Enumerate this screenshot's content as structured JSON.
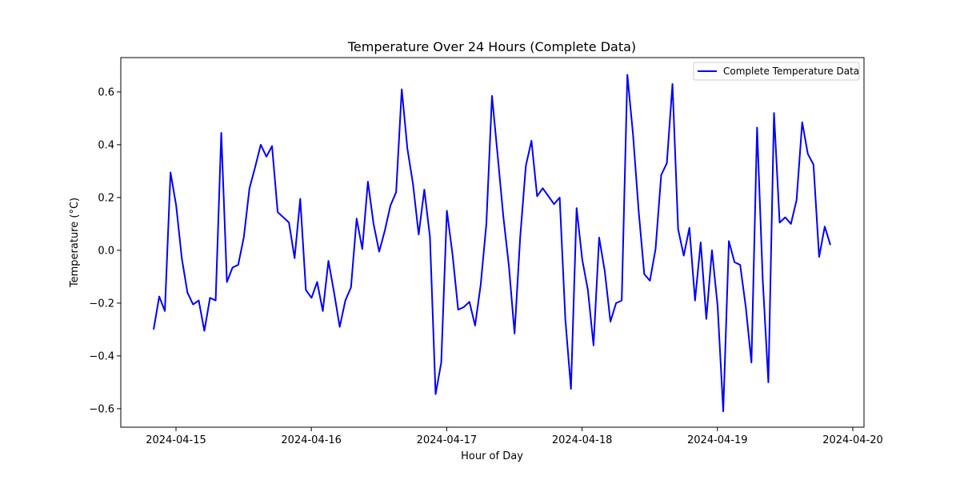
{
  "chart_data": {
    "type": "line",
    "title": "Temperature Over 24 Hours (Complete Data)",
    "xlabel": "Hour of Day",
    "ylabel": "Temperature (°C)",
    "x_tick_labels": [
      "2024-04-15",
      "2024-04-16",
      "2024-04-17",
      "2024-04-18",
      "2024-04-19",
      "2024-04-20"
    ],
    "y_tick_labels": [
      "−0.6",
      "−0.4",
      "−0.2",
      "0.0",
      "0.2",
      "0.4",
      "0.6"
    ],
    "ylim": [
      -0.67,
      0.73
    ],
    "grid": false,
    "legend_position": "top-right",
    "series": [
      {
        "name": "Complete Temperature Data",
        "color": "#0000ff",
        "y": [
          -0.3,
          -0.175,
          -0.23,
          0.295,
          0.17,
          -0.03,
          -0.16,
          -0.205,
          -0.19,
          -0.305,
          -0.18,
          -0.19,
          0.445,
          -0.12,
          -0.065,
          -0.055,
          0.05,
          0.235,
          0.315,
          0.4,
          0.355,
          0.395,
          0.145,
          0.125,
          0.105,
          -0.03,
          0.195,
          -0.15,
          -0.18,
          -0.12,
          -0.23,
          -0.04,
          -0.16,
          -0.29,
          -0.19,
          -0.14,
          0.12,
          0.005,
          0.26,
          0.1,
          -0.005,
          0.075,
          0.17,
          0.22,
          0.61,
          0.385,
          0.25,
          0.06,
          0.23,
          0.05,
          -0.545,
          -0.425,
          0.15,
          -0.015,
          -0.225,
          -0.215,
          -0.195,
          -0.285,
          -0.13,
          0.1,
          0.585,
          0.36,
          0.13,
          -0.06,
          -0.315,
          0.05,
          0.32,
          0.415,
          0.205,
          0.235,
          0.205,
          0.175,
          0.2,
          -0.26,
          -0.525,
          0.16,
          -0.035,
          -0.15,
          -0.36,
          0.048,
          -0.08,
          -0.27,
          -0.2,
          -0.19,
          0.665,
          0.44,
          0.15,
          -0.09,
          -0.115,
          0.005,
          0.285,
          0.33,
          0.63,
          0.08,
          -0.02,
          0.085,
          -0.19,
          0.03,
          -0.26,
          0.0,
          -0.21,
          -0.61,
          0.035,
          -0.045,
          -0.055,
          -0.215,
          -0.425,
          0.465,
          -0.11,
          -0.5,
          0.52,
          0.105,
          0.125,
          0.1,
          0.19,
          0.485,
          0.365,
          0.325,
          -0.025,
          0.09,
          0.02
        ]
      }
    ]
  }
}
